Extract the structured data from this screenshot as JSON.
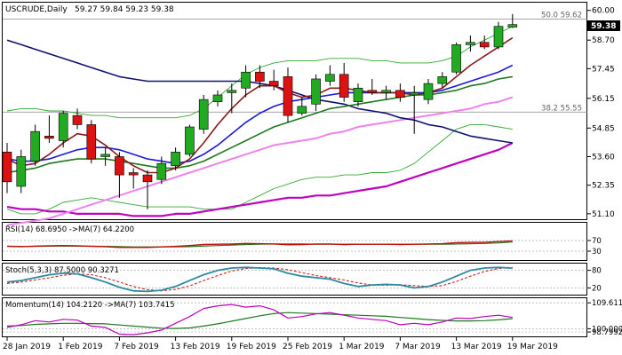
{
  "chart_data": {
    "type": "candlestick",
    "symbol_line": "USCRUDE,Daily",
    "ohlc_line": "59.27 59.84 59.23 59.38",
    "last_price": "59.38",
    "fib_levels": [
      {
        "label": "50.0 59.62",
        "value": 59.62
      },
      {
        "label": "38.2 55.55",
        "value": 55.55
      }
    ],
    "price_axis": {
      "ticks": [
        "60.00",
        "58.70",
        "57.45",
        "56.15",
        "54.85",
        "53.60",
        "52.35",
        "51.10"
      ],
      "ylim": [
        50.9,
        60.3
      ]
    },
    "x_ticks": [
      "28 Jan 2019",
      "1 Feb 2019",
      "7 Feb 2019",
      "13 Feb 2019",
      "19 Feb 2019",
      "25 Feb 2019",
      "1 Mar 2019",
      "7 Mar 2019",
      "13 Mar 2019",
      "19 Mar 2019"
    ],
    "colors": {
      "up": "#22aa22",
      "down": "#dd1111",
      "ma_maroon": "#8b1a1a",
      "ma_blue": "#1a1ad8",
      "ma_green": "#1e7a1e",
      "ma_navy": "#101070",
      "ma_violet": "#ee82ee",
      "ma_magenta": "#c000c0",
      "bb": "#33aa33"
    },
    "candles": [
      {
        "o": 53.8,
        "h": 54.2,
        "l": 52.0,
        "c": 52.5
      },
      {
        "o": 52.3,
        "h": 53.9,
        "l": 52.0,
        "c": 53.6
      },
      {
        "o": 53.4,
        "h": 55.0,
        "l": 53.2,
        "c": 54.7
      },
      {
        "o": 54.5,
        "h": 55.4,
        "l": 54.2,
        "c": 54.4
      },
      {
        "o": 54.3,
        "h": 55.6,
        "l": 54.0,
        "c": 55.5
      },
      {
        "o": 55.4,
        "h": 55.7,
        "l": 54.8,
        "c": 55.0
      },
      {
        "o": 55.0,
        "h": 55.2,
        "l": 53.3,
        "c": 53.5
      },
      {
        "o": 53.6,
        "h": 54.0,
        "l": 53.2,
        "c": 53.7
      },
      {
        "o": 53.6,
        "h": 53.8,
        "l": 51.8,
        "c": 52.8
      },
      {
        "o": 52.9,
        "h": 53.1,
        "l": 52.2,
        "c": 52.8
      },
      {
        "o": 52.8,
        "h": 53.0,
        "l": 51.3,
        "c": 52.5
      },
      {
        "o": 52.6,
        "h": 53.6,
        "l": 52.4,
        "c": 53.3
      },
      {
        "o": 53.2,
        "h": 54.0,
        "l": 53.0,
        "c": 53.8
      },
      {
        "o": 53.7,
        "h": 55.0,
        "l": 53.6,
        "c": 54.9
      },
      {
        "o": 54.8,
        "h": 56.3,
        "l": 54.6,
        "c": 56.1
      },
      {
        "o": 56.0,
        "h": 56.5,
        "l": 55.8,
        "c": 56.3
      },
      {
        "o": 56.4,
        "h": 56.8,
        "l": 55.5,
        "c": 56.5
      },
      {
        "o": 56.6,
        "h": 57.6,
        "l": 56.2,
        "c": 57.3
      },
      {
        "o": 57.3,
        "h": 57.6,
        "l": 56.6,
        "c": 56.9
      },
      {
        "o": 56.9,
        "h": 57.4,
        "l": 56.5,
        "c": 56.7
      },
      {
        "o": 57.1,
        "h": 57.5,
        "l": 55.1,
        "c": 55.4
      },
      {
        "o": 55.5,
        "h": 56.2,
        "l": 55.4,
        "c": 55.8
      },
      {
        "o": 55.9,
        "h": 57.2,
        "l": 55.6,
        "c": 57.0
      },
      {
        "o": 56.9,
        "h": 57.6,
        "l": 56.7,
        "c": 57.2
      },
      {
        "o": 57.2,
        "h": 57.7,
        "l": 56.0,
        "c": 56.2
      },
      {
        "o": 56.0,
        "h": 56.8,
        "l": 55.8,
        "c": 56.6
      },
      {
        "o": 56.5,
        "h": 57.0,
        "l": 56.3,
        "c": 56.4
      },
      {
        "o": 56.4,
        "h": 56.7,
        "l": 56.1,
        "c": 56.5
      },
      {
        "o": 56.5,
        "h": 56.8,
        "l": 56.0,
        "c": 56.2
      },
      {
        "o": 56.3,
        "h": 56.7,
        "l": 54.6,
        "c": 56.4
      },
      {
        "o": 56.1,
        "h": 57.0,
        "l": 55.9,
        "c": 56.8
      },
      {
        "o": 56.8,
        "h": 57.3,
        "l": 56.6,
        "c": 57.1
      },
      {
        "o": 57.3,
        "h": 58.6,
        "l": 57.2,
        "c": 58.5
      },
      {
        "o": 58.5,
        "h": 58.9,
        "l": 58.2,
        "c": 58.6
      },
      {
        "o": 58.6,
        "h": 58.9,
        "l": 58.3,
        "c": 58.4
      },
      {
        "o": 58.4,
        "h": 59.5,
        "l": 58.3,
        "c": 59.3
      },
      {
        "o": 59.27,
        "h": 59.84,
        "l": 59.23,
        "c": 59.38
      }
    ],
    "ma_maroon": [
      53.5,
      53.2,
      53.3,
      53.7,
      54.2,
      54.6,
      54.5,
      54.1,
      53.6,
      53.2,
      52.9,
      52.9,
      53.1,
      53.5,
      54.2,
      55.0,
      55.7,
      56.3,
      56.7,
      56.7,
      56.4,
      56.2,
      56.3,
      56.6,
      56.6,
      56.5,
      56.4,
      56.4,
      56.4,
      56.3,
      56.4,
      56.6,
      57.1,
      57.6,
      58.0,
      58.4,
      58.8
    ],
    "ma_blue": [
      53.5,
      53.4,
      53.4,
      53.5,
      53.7,
      53.9,
      54.0,
      54.0,
      53.9,
      53.7,
      53.5,
      53.4,
      53.3,
      53.4,
      53.7,
      54.1,
      54.6,
      55.1,
      55.5,
      55.8,
      56.0,
      56.1,
      56.2,
      56.3,
      56.4,
      56.4,
      56.4,
      56.4,
      56.4,
      56.4,
      56.4,
      56.5,
      56.7,
      56.9,
      57.1,
      57.3,
      57.6
    ],
    "ma_green": [
      52.9,
      53.0,
      53.1,
      53.3,
      53.4,
      53.5,
      53.5,
      53.5,
      53.4,
      53.3,
      53.2,
      53.1,
      53.1,
      53.2,
      53.4,
      53.7,
      54.0,
      54.3,
      54.6,
      54.9,
      55.1,
      55.3,
      55.5,
      55.7,
      55.8,
      55.9,
      56.0,
      56.1,
      56.2,
      56.3,
      56.3,
      56.4,
      56.5,
      56.7,
      56.8,
      57.0,
      57.1
    ],
    "ma_navy": [
      58.7,
      58.5,
      58.3,
      58.1,
      57.9,
      57.7,
      57.5,
      57.3,
      57.1,
      57.0,
      56.9,
      56.9,
      56.9,
      56.9,
      56.9,
      56.9,
      56.9,
      56.9,
      56.8,
      56.7,
      56.5,
      56.3,
      56.1,
      56.0,
      55.9,
      55.7,
      55.6,
      55.5,
      55.3,
      55.2,
      55.0,
      54.9,
      54.7,
      54.5,
      54.4,
      54.3,
      54.2
    ],
    "ma_violet": [
      50.6,
      50.7,
      50.8,
      50.9,
      51.1,
      51.3,
      51.5,
      51.7,
      51.9,
      52.1,
      52.3,
      52.5,
      52.7,
      52.9,
      53.1,
      53.3,
      53.5,
      53.7,
      53.9,
      54.1,
      54.2,
      54.3,
      54.4,
      54.6,
      54.7,
      54.9,
      55.0,
      55.1,
      55.2,
      55.3,
      55.4,
      55.5,
      55.6,
      55.7,
      55.9,
      56.0,
      56.2
    ],
    "ma_magenta": [
      51.4,
      51.3,
      51.3,
      51.2,
      51.2,
      51.1,
      51.1,
      51.1,
      51.1,
      51.0,
      51.0,
      51.0,
      51.1,
      51.1,
      51.2,
      51.3,
      51.4,
      51.5,
      51.6,
      51.7,
      51.8,
      51.8,
      51.9,
      51.9,
      52.0,
      52.1,
      52.2,
      52.3,
      52.5,
      52.7,
      52.9,
      53.1,
      53.3,
      53.5,
      53.7,
      53.9,
      54.2
    ],
    "bb_upper": [
      55.6,
      55.7,
      55.7,
      55.6,
      55.6,
      55.5,
      55.4,
      55.4,
      55.3,
      55.3,
      55.3,
      55.3,
      55.3,
      55.4,
      55.7,
      56.2,
      56.7,
      57.2,
      57.5,
      57.7,
      57.8,
      57.8,
      57.8,
      57.9,
      57.9,
      57.9,
      57.8,
      57.8,
      57.7,
      57.7,
      57.7,
      57.8,
      58.0,
      58.4,
      58.7,
      59.0,
      59.3
    ],
    "bb_lower": [
      51.3,
      51.1,
      51.1,
      51.3,
      51.6,
      51.7,
      51.8,
      51.7,
      51.6,
      51.5,
      51.4,
      51.4,
      51.4,
      51.4,
      51.3,
      51.3,
      51.3,
      51.6,
      51.9,
      52.2,
      52.4,
      52.6,
      52.7,
      52.7,
      52.8,
      52.8,
      52.9,
      52.9,
      53.0,
      53.3,
      53.8,
      54.3,
      54.8,
      55.0,
      55.0,
      54.9,
      54.8
    ],
    "rsi": {
      "label": "RSI(14) 68.6950 ->MA(7) 64.2200",
      "ticks": [
        "70",
        "30"
      ],
      "ylim": [
        0,
        100
      ],
      "values": [
        48,
        47,
        49,
        50,
        51,
        50,
        48,
        47,
        44,
        44,
        44,
        46,
        48,
        51,
        55,
        56,
        57,
        59,
        58,
        57,
        54,
        55,
        57,
        57,
        55,
        56,
        56,
        56,
        55,
        56,
        57,
        58,
        62,
        63,
        63,
        66,
        68.695
      ],
      "ma": [
        49,
        48,
        48,
        49,
        49,
        49,
        49,
        48,
        47,
        46,
        46,
        46,
        46,
        47,
        49,
        51,
        53,
        55,
        56,
        57,
        57,
        57,
        56,
        56,
        56,
        56,
        56,
        56,
        56,
        56,
        56,
        56,
        57,
        58,
        59,
        61,
        64.22
      ]
    },
    "stoch": {
      "label": "Stoch(5,3,3) 87.5000 90.3271",
      "ticks": [
        "80",
        "20"
      ],
      "ylim": [
        0,
        100
      ],
      "k": [
        40,
        45,
        55,
        65,
        70,
        68,
        55,
        40,
        22,
        10,
        8,
        12,
        25,
        45,
        65,
        80,
        88,
        90,
        88,
        85,
        70,
        60,
        55,
        50,
        35,
        25,
        30,
        32,
        30,
        20,
        25,
        40,
        60,
        80,
        88,
        90,
        87.5
      ],
      "d": [
        35,
        40,
        47,
        55,
        63,
        68,
        65,
        55,
        40,
        25,
        14,
        10,
        15,
        27,
        45,
        62,
        78,
        86,
        89,
        88,
        82,
        72,
        62,
        55,
        47,
        37,
        30,
        29,
        31,
        28,
        25,
        28,
        42,
        60,
        76,
        86,
        90.33
      ]
    },
    "momentum": {
      "label": "Momentum(14) 104.2120 ->MA(7) 103.7415",
      "ticks": [
        "109.6114",
        "100.0000",
        "98.7992"
      ],
      "ylim": [
        97.5,
        111
      ],
      "values": [
        100.5,
        101.5,
        103.0,
        102.5,
        103.5,
        103.2,
        101.0,
        100.5,
        98.0,
        97.8,
        98.5,
        99.5,
        102.0,
        104.5,
        107.5,
        108.5,
        109.0,
        108.0,
        108.5,
        107.0,
        104.0,
        104.5,
        105.5,
        106.0,
        105.0,
        104.0,
        103.5,
        103.0,
        101.5,
        102.0,
        101.5,
        102.5,
        104.0,
        103.8,
        104.5,
        105.0,
        104.2
      ],
      "ma": [
        101.0,
        101.2,
        101.6,
        101.8,
        102.0,
        102.0,
        101.9,
        101.8,
        101.4,
        101.0,
        100.6,
        100.2,
        100.1,
        100.3,
        101.0,
        101.8,
        102.8,
        103.8,
        104.8,
        105.6,
        106.0,
        105.8,
        105.6,
        105.4,
        105.2,
        105.0,
        104.8,
        104.6,
        104.2,
        103.8,
        103.4,
        103.1,
        102.9,
        102.9,
        103.0,
        103.3,
        103.74
      ]
    }
  }
}
